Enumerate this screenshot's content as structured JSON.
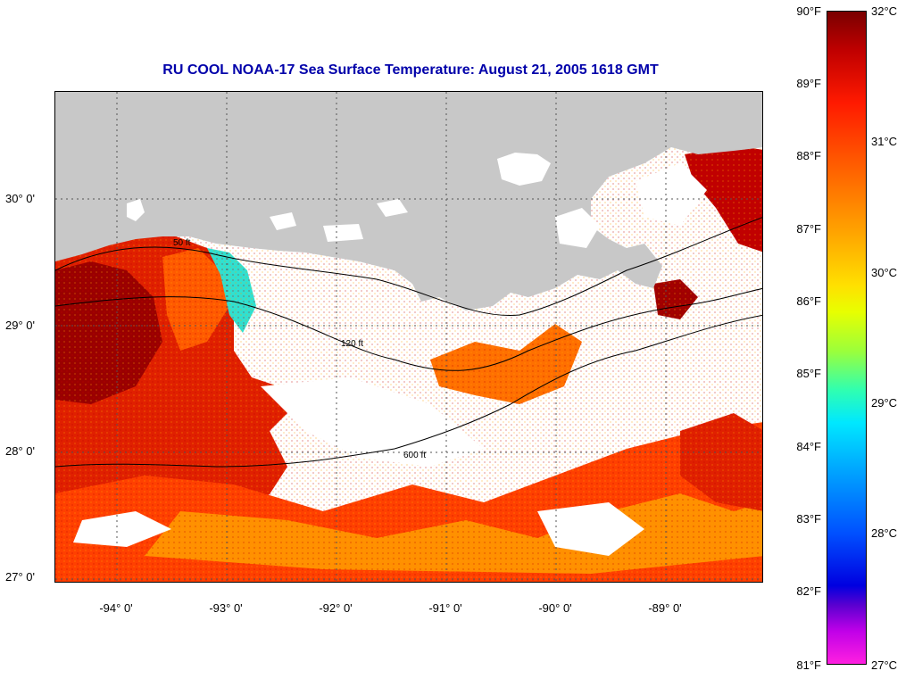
{
  "title": "RU COOL  NOAA-17  Sea Surface Temperature:  August 21, 2005 1618 GMT",
  "latitude_labels": [
    "30° 0'",
    "29° 0'",
    "28° 0'",
    "27° 0'"
  ],
  "longitude_labels": [
    "-94° 0'",
    "-93° 0'",
    "-92° 0'",
    "-91° 0'",
    "-90° 0'",
    "-89° 0'"
  ],
  "colorbar": {
    "fahrenheit_labels": [
      "90°F",
      "89°F",
      "88°F",
      "87°F",
      "86°F",
      "85°F",
      "84°F",
      "83°F",
      "82°F",
      "81°F"
    ],
    "celsius_labels": [
      "32°C",
      "31°C",
      "30°C",
      "29°C",
      "28°C",
      "27°C"
    ]
  },
  "contour_labels": [
    "50 ft",
    "120 ft",
    "600 ft"
  ],
  "colors": {
    "title": "#0000aa",
    "land": "#c8c8c8",
    "hot": "#b00000",
    "warm": "#ff3300",
    "mild": "#ff8c00",
    "cloud": "#ffffff"
  }
}
